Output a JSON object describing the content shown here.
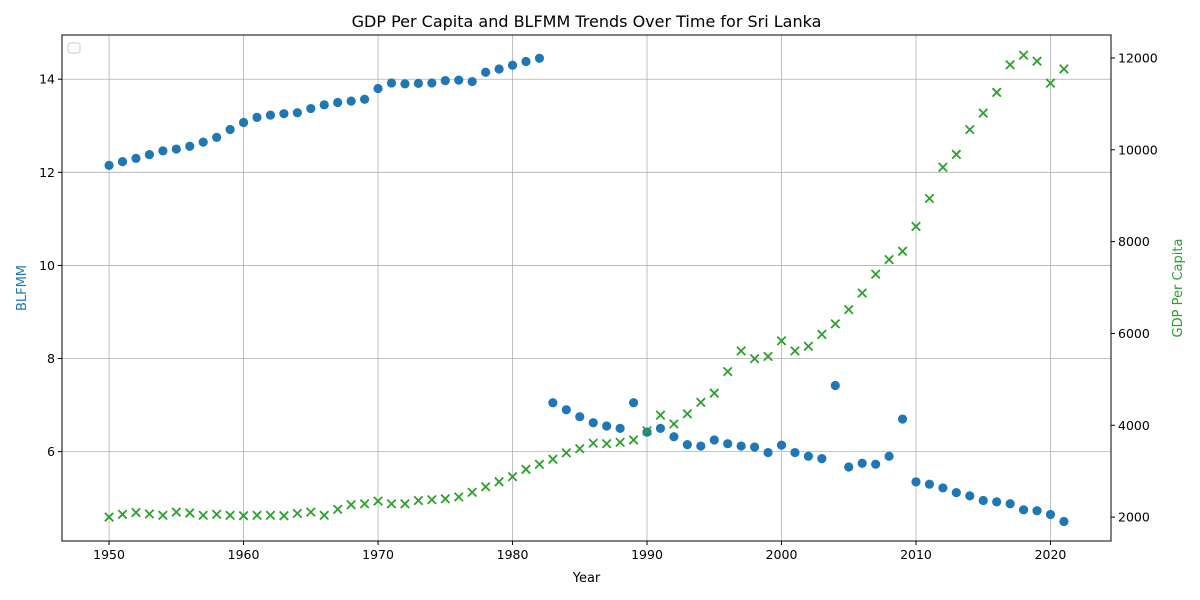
{
  "chart_data": {
    "type": "scatter",
    "title": "GDP Per Capita and BLFMM Trends Over Time for Sri Lanka",
    "xlabel": "Year",
    "ylabel_left": "BLFMM",
    "ylabel_right": "GDP Per Capita",
    "xlim": [
      1946.5,
      2024.5
    ],
    "ylim_left": [
      4.08,
      14.95
    ],
    "ylim_right": [
      1480,
      12500
    ],
    "x_ticks": [
      1950,
      1960,
      1970,
      1980,
      1990,
      2000,
      2010,
      2020
    ],
    "y_ticks_left": [
      6,
      8,
      10,
      12,
      14
    ],
    "y_ticks_right": [
      2000,
      4000,
      6000,
      8000,
      10000,
      12000
    ],
    "grid": true,
    "legend": "top-left (empty)",
    "colors": {
      "left": "#1f77b4",
      "right": "#2ca02c"
    },
    "series": [
      {
        "name": "BLFMM",
        "axis": "left",
        "marker": "circle",
        "x": [
          1950,
          1951,
          1952,
          1953,
          1954,
          1955,
          1956,
          1957,
          1958,
          1959,
          1960,
          1961,
          1962,
          1963,
          1964,
          1965,
          1966,
          1967,
          1968,
          1969,
          1970,
          1971,
          1972,
          1973,
          1974,
          1975,
          1976,
          1977,
          1978,
          1979,
          1980,
          1981,
          1982,
          1983,
          1984,
          1985,
          1986,
          1987,
          1988,
          1989,
          1990,
          1991,
          1992,
          1993,
          1994,
          1995,
          1996,
          1997,
          1998,
          1999,
          2000,
          2001,
          2002,
          2003,
          2004,
          2005,
          2006,
          2007,
          2008,
          2009,
          2010,
          2011,
          2012,
          2013,
          2014,
          2015,
          2016,
          2017,
          2018,
          2019,
          2020,
          2021
        ],
        "y": [
          12.15,
          12.23,
          12.3,
          12.38,
          12.46,
          12.5,
          12.56,
          12.65,
          12.75,
          12.92,
          13.07,
          13.18,
          13.23,
          13.26,
          13.28,
          13.37,
          13.45,
          13.5,
          13.53,
          13.57,
          13.8,
          13.92,
          13.9,
          13.91,
          13.92,
          13.97,
          13.98,
          13.95,
          14.15,
          14.22,
          14.3,
          14.38,
          14.45,
          7.05,
          6.9,
          6.75,
          6.62,
          6.55,
          6.5,
          7.05,
          6.42,
          6.5,
          6.32,
          6.15,
          6.12,
          6.25,
          6.17,
          6.12,
          6.1,
          5.98,
          6.14,
          5.98,
          5.9,
          5.85,
          7.42,
          5.67,
          5.75,
          5.73,
          5.9,
          6.7,
          5.35,
          5.3,
          5.22,
          5.12,
          5.05,
          4.95,
          4.92,
          4.88,
          4.75,
          4.73,
          4.65,
          4.5
        ]
      },
      {
        "name": "GDP Per Capita",
        "axis": "right",
        "marker": "x",
        "x": [
          1950,
          1951,
          1952,
          1953,
          1954,
          1955,
          1956,
          1957,
          1958,
          1959,
          1960,
          1961,
          1962,
          1963,
          1964,
          1965,
          1966,
          1967,
          1968,
          1969,
          1970,
          1971,
          1972,
          1973,
          1974,
          1975,
          1976,
          1977,
          1978,
          1979,
          1980,
          1981,
          1982,
          1983,
          1984,
          1985,
          1986,
          1987,
          1988,
          1989,
          1990,
          1991,
          1992,
          1993,
          1994,
          1995,
          1996,
          1997,
          1998,
          1999,
          2000,
          2001,
          2002,
          2003,
          2004,
          2005,
          2006,
          2007,
          2008,
          2009,
          2010,
          2011,
          2012,
          2013,
          2014,
          2015,
          2016,
          2017,
          2018,
          2019,
          2020,
          2021
        ],
        "y": [
          2000,
          2060,
          2100,
          2070,
          2040,
          2110,
          2090,
          2040,
          2060,
          2040,
          2030,
          2040,
          2040,
          2030,
          2080,
          2110,
          2040,
          2170,
          2270,
          2290,
          2350,
          2290,
          2290,
          2360,
          2380,
          2400,
          2440,
          2540,
          2660,
          2770,
          2880,
          3040,
          3150,
          3260,
          3400,
          3490,
          3610,
          3600,
          3630,
          3680,
          3880,
          4220,
          4030,
          4250,
          4500,
          4700,
          5170,
          5620,
          5450,
          5500,
          5840,
          5620,
          5720,
          5980,
          6210,
          6520,
          6880,
          7290,
          7610,
          7790,
          8330,
          8940,
          9620,
          9900,
          10440,
          10800,
          11250,
          11850,
          12060,
          11930,
          11450,
          11760
        ]
      }
    ]
  }
}
